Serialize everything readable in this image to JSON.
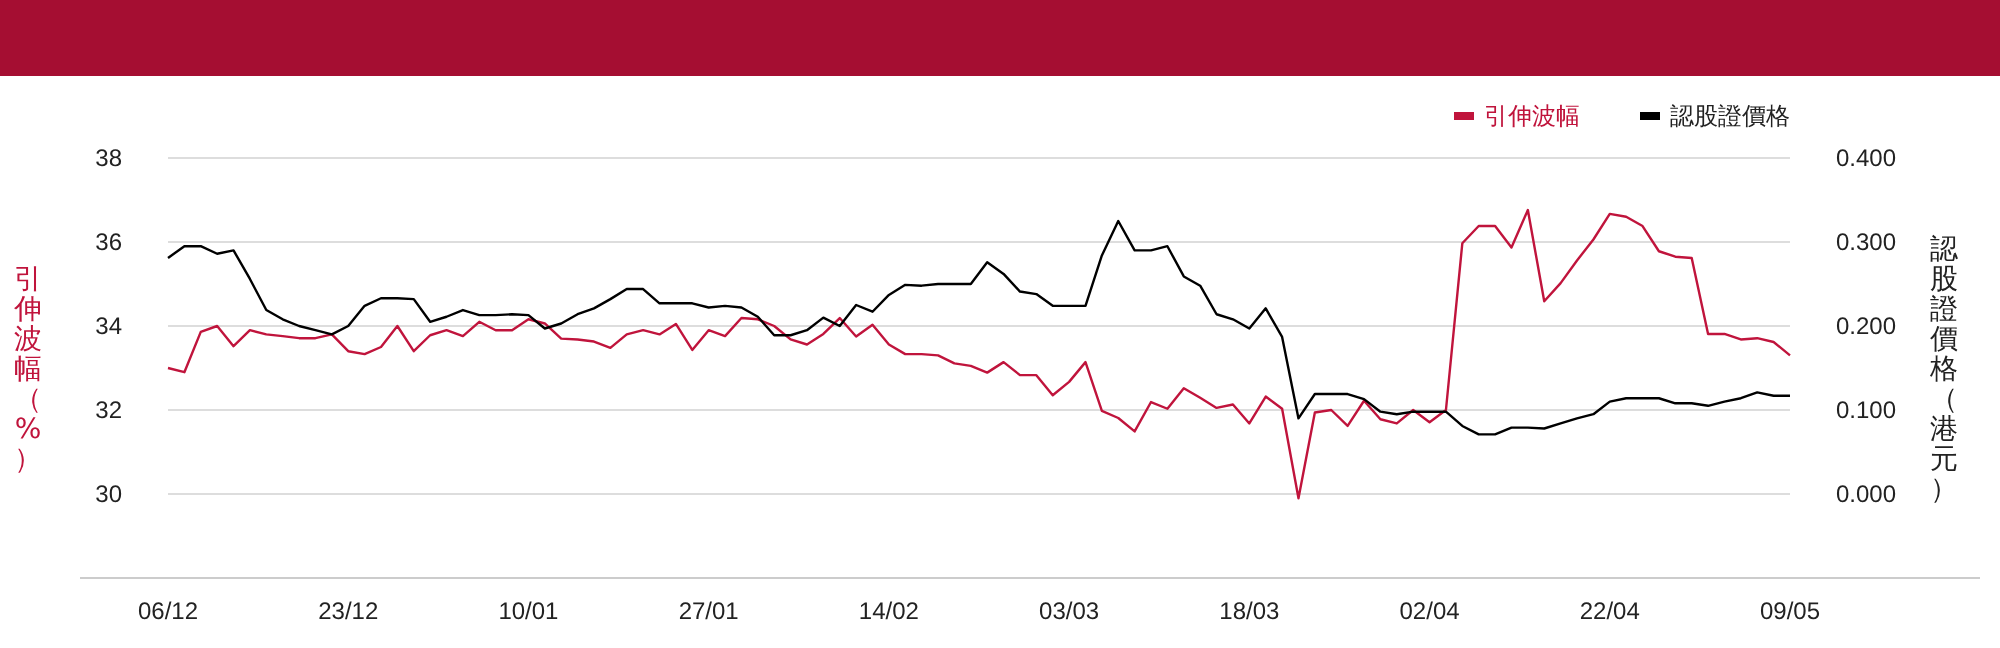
{
  "chart_data": {
    "type": "line",
    "ylabel": "引伸波幅（%）",
    "y2label": "認股證價格（港元）",
    "categories": [
      "06/12",
      null,
      null,
      null,
      null,
      null,
      null,
      null,
      null,
      null,
      null,
      "23/12",
      null,
      null,
      null,
      null,
      null,
      null,
      null,
      null,
      null,
      null,
      "10/01",
      null,
      null,
      null,
      null,
      null,
      null,
      null,
      null,
      null,
      null,
      "27/01",
      null,
      null,
      null,
      null,
      null,
      null,
      null,
      null,
      null,
      null,
      "14/02",
      null,
      null,
      null,
      null,
      null,
      null,
      null,
      null,
      null,
      null,
      "03/03",
      null,
      null,
      null,
      null,
      null,
      null,
      null,
      null,
      null,
      null,
      "18/03",
      null,
      null,
      null,
      null,
      null,
      null,
      null,
      null,
      null,
      null,
      "02/04",
      null,
      null,
      null,
      null,
      null,
      null,
      null,
      null,
      null,
      null,
      "22/04",
      null,
      null,
      null,
      null,
      null,
      null,
      null,
      null,
      null,
      null,
      "09/05"
    ],
    "series": [
      {
        "name": "引伸波幅",
        "color": "#c0143c",
        "values": [
          33.0,
          32.9,
          33.86,
          34.0,
          33.52,
          33.9,
          33.8,
          33.76,
          33.71,
          33.71,
          33.8,
          33.4,
          33.33,
          33.5,
          34.0,
          33.4,
          33.78,
          33.9,
          33.76,
          34.1,
          33.9,
          33.9,
          34.16,
          34.06,
          33.7,
          33.68,
          33.63,
          33.48,
          33.8,
          33.9,
          33.8,
          34.05,
          33.43,
          33.9,
          33.76,
          34.19,
          34.16,
          34.0,
          33.68,
          33.56,
          33.81,
          34.19,
          33.75,
          34.03,
          33.56,
          33.33,
          33.33,
          33.3,
          33.11,
          33.05,
          32.89,
          33.14,
          32.83,
          32.83,
          32.35,
          32.67,
          33.14,
          31.98,
          31.81,
          31.49,
          32.19,
          32.03,
          32.52,
          32.29,
          32.05,
          32.13,
          31.68,
          32.32,
          32.03,
          29.9,
          31.94,
          32.0,
          31.62,
          32.22,
          31.78,
          31.68,
          32.0,
          31.71,
          32.0,
          35.97,
          36.38,
          36.38,
          35.87,
          36.76,
          34.59,
          35.02,
          35.56,
          36.06,
          36.67,
          36.6,
          36.38,
          35.78,
          35.65,
          35.62,
          33.81,
          33.81,
          33.68,
          33.71,
          33.62,
          33.3
        ]
      },
      {
        "name": "認股證價格",
        "color": "#000000",
        "axis": "y2",
        "values": [
          0.281,
          0.295,
          0.295,
          0.286,
          0.29,
          0.256,
          0.219,
          0.208,
          0.2,
          0.195,
          0.19,
          0.2,
          0.224,
          0.233,
          0.233,
          0.232,
          0.205,
          0.211,
          0.219,
          0.213,
          0.213,
          0.214,
          0.213,
          0.197,
          0.203,
          0.214,
          0.221,
          0.232,
          0.244,
          0.244,
          0.227,
          0.227,
          0.227,
          0.222,
          0.224,
          0.222,
          0.211,
          0.189,
          0.189,
          0.195,
          0.21,
          0.2,
          0.225,
          0.217,
          0.237,
          0.249,
          0.248,
          0.25,
          0.25,
          0.25,
          0.276,
          0.262,
          0.241,
          0.238,
          0.224,
          0.224,
          0.224,
          0.284,
          0.325,
          0.29,
          0.29,
          0.295,
          0.259,
          0.248,
          0.214,
          0.208,
          0.197,
          0.221,
          0.187,
          0.09,
          0.119,
          0.119,
          0.119,
          0.113,
          0.098,
          0.095,
          0.098,
          0.098,
          0.098,
          0.081,
          0.071,
          0.071,
          0.079,
          0.079,
          0.078,
          0.084,
          0.09,
          0.095,
          0.11,
          0.114,
          0.114,
          0.114,
          0.108,
          0.108,
          0.105,
          0.11,
          0.114,
          0.121,
          0.117,
          0.117
        ]
      }
    ],
    "ylim": [
      28,
      38
    ],
    "yticks": [
      30,
      32,
      34,
      36,
      38
    ],
    "y2lim": [
      -0.1,
      0.4
    ],
    "y2ticks": [
      {
        "value": 0,
        "label": "0.000"
      },
      {
        "value": 0.1,
        "label": "0.100"
      },
      {
        "value": 0.2,
        "label": "0.200"
      },
      {
        "value": 0.3,
        "label": "0.300"
      },
      {
        "value": 0.4,
        "label": "0.400"
      }
    ],
    "grid": "y",
    "legend": "top right"
  }
}
